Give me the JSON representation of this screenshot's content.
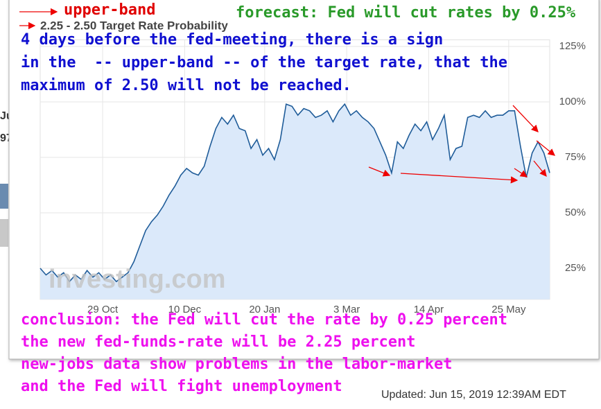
{
  "chart_data": {
    "type": "area",
    "title": "2.25 - 2.50 Target Rate Probability",
    "x": [
      0,
      3,
      6,
      9,
      12,
      15,
      18,
      21,
      24,
      27,
      30,
      33,
      36,
      39,
      42,
      45,
      48,
      51,
      54,
      57,
      60,
      63,
      66,
      69,
      72,
      75,
      78,
      81,
      84,
      87,
      90,
      93,
      96,
      99,
      102,
      105,
      108,
      111,
      114,
      117,
      120,
      123,
      126,
      129,
      132,
      135,
      138,
      141,
      144,
      147,
      150,
      153,
      156,
      159,
      162,
      165,
      168,
      171,
      174,
      177,
      180,
      183,
      186,
      189,
      192,
      195,
      198,
      201,
      204,
      207,
      210,
      213,
      216,
      219,
      222,
      225,
      228,
      231,
      234,
      237,
      240,
      243,
      246,
      249,
      252,
      255,
      258,
      261
    ],
    "values": [
      25,
      22,
      24,
      21,
      23,
      19,
      22,
      20,
      24,
      21,
      23,
      20,
      22,
      19,
      21,
      23,
      28,
      35,
      42,
      46,
      49,
      53,
      58,
      62,
      67,
      70,
      68,
      67,
      71,
      80,
      88,
      93,
      90,
      94,
      88,
      87,
      79,
      83,
      76,
      79,
      74,
      83,
      99,
      98,
      94,
      97,
      96,
      93,
      94,
      96,
      91,
      96,
      99,
      94,
      96,
      93,
      91,
      88,
      82,
      76,
      68,
      82,
      79,
      85,
      90,
      87,
      91,
      83,
      88,
      94,
      74,
      79,
      80,
      93,
      94,
      93,
      96,
      93,
      94,
      94,
      96,
      96,
      80,
      66,
      77,
      82,
      77,
      68
    ],
    "color": "#1f5c99",
    "fill_color": "#dbe9fa",
    "xlim": [
      0,
      261
    ],
    "xticks": [
      {
        "value": 32,
        "label": "29 Oct"
      },
      {
        "value": 74,
        "label": "10 Dec"
      },
      {
        "value": 115,
        "label": "20 Jan"
      },
      {
        "value": 157,
        "label": "3 Mar"
      },
      {
        "value": 199,
        "label": "14 Apr"
      },
      {
        "value": 240,
        "label": "25 May"
      }
    ],
    "ylim": [
      11,
      128
    ],
    "yticks": [
      {
        "value": 25,
        "label": "25%"
      },
      {
        "value": 50,
        "label": "50%"
      },
      {
        "value": 75,
        "label": "75%"
      },
      {
        "value": 100,
        "label": "100%"
      },
      {
        "value": 125,
        "label": "125%"
      }
    ],
    "grid": true,
    "watermark": "investing.com",
    "updated": "Updated: Jun 15, 2019 12:39AM EDT",
    "annotations": {
      "upper_band": "upper-band",
      "forecast": "forecast: Fed will cut rates by 0.25%",
      "sign": [
        "4 days before the fed-meeting, there is a sign",
        "in the  -- upper-band -- of the target rate, that the",
        "maximum of 2.50 will not be reached."
      ],
      "conclusion": [
        "conclusion: the Fed will cut the rate by 0.25 percent",
        "the new fed-funds-rate will be 2.25 percent",
        "new-jobs data show problems in the labor-market",
        "and the Fed will fight unemployment"
      ]
    },
    "background_text": [
      "Ju",
      "97"
    ]
  }
}
